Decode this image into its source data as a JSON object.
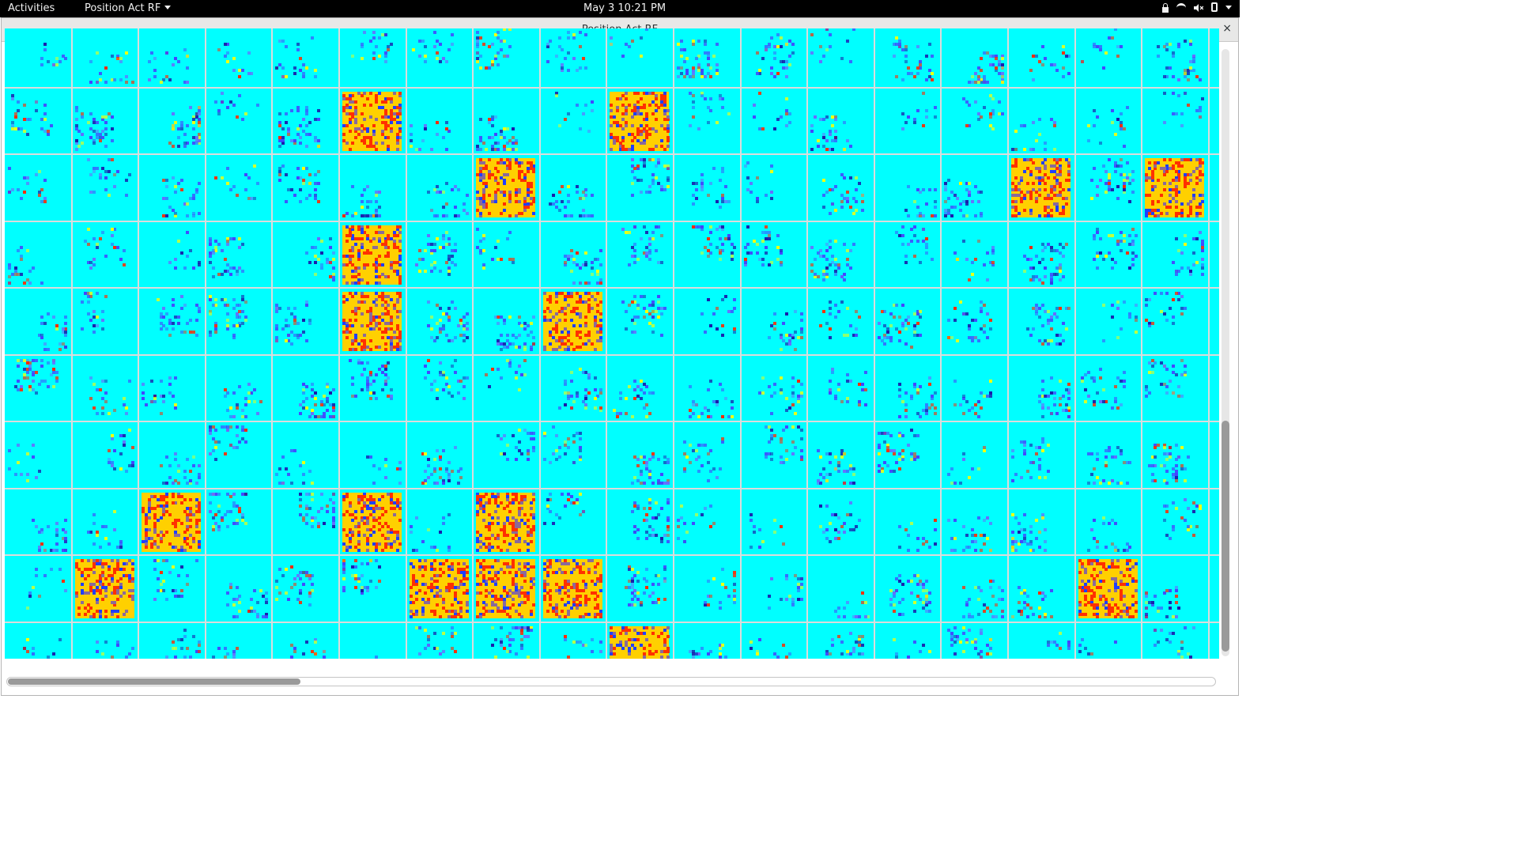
{
  "topbar": {
    "activities": "Activities",
    "app_menu": "Position Act RF",
    "clock": "May 3  10:21 PM",
    "icons": [
      "lock-icon",
      "wifi-icon",
      "volume-muted-icon",
      "battery-icon",
      "system-menu-chevron-icon"
    ]
  },
  "window": {
    "title": "Position Act RF",
    "close_label": "×"
  },
  "grid": {
    "columns": 18,
    "visible_rows": 10,
    "colors": {
      "background": "#00ffff",
      "low": "#4444ff",
      "mid": "#1a1aaa",
      "high": "#ff2a00",
      "peak": "#ffff00",
      "hot_fill": "#ffd000",
      "hot_red": "#ff3000",
      "hot_blue": "#2040ff"
    },
    "hot_cells": [
      [
        1,
        5
      ],
      [
        1,
        9
      ],
      [
        2,
        7
      ],
      [
        2,
        15
      ],
      [
        2,
        17
      ],
      [
        3,
        5
      ],
      [
        4,
        5
      ],
      [
        4,
        8
      ],
      [
        7,
        2
      ],
      [
        7,
        5
      ],
      [
        7,
        7
      ],
      [
        8,
        1
      ],
      [
        8,
        6
      ],
      [
        8,
        7
      ],
      [
        8,
        8
      ],
      [
        8,
        16
      ],
      [
        9,
        9
      ]
    ]
  },
  "scrollbars": {
    "vertical_position": 0.61,
    "horizontal_position": 0.0
  }
}
